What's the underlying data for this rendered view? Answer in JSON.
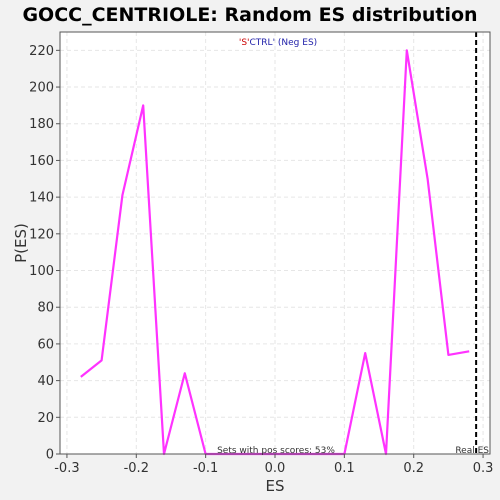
{
  "chart_data": {
    "type": "line",
    "title": "GOCC_CENTRIOLE: Random ES distribution",
    "xlabel": "ES",
    "ylabel": "P(ES)",
    "xlim": [
      -0.31,
      0.31
    ],
    "ylim": [
      0,
      230
    ],
    "xticks": [
      -0.3,
      -0.2,
      -0.1,
      0.0,
      0.1,
      0.2,
      0.3
    ],
    "xtick_labels": [
      "-0.3",
      "-0.2",
      "-0.1",
      "0.0",
      "0.1",
      "0.2",
      "0.3"
    ],
    "yticks": [
      0,
      20,
      40,
      60,
      80,
      100,
      120,
      140,
      160,
      180,
      200,
      220
    ],
    "ytick_labels": [
      "0",
      "20",
      "40",
      "60",
      "80",
      "100",
      "120",
      "140",
      "160",
      "180",
      "200",
      "220"
    ],
    "grid": true,
    "legend": {
      "position": "top-center",
      "quote_open": "'",
      "s_text": "S",
      "quote_close": "'",
      "ctrl_text": "CTRL' (Neg ES)"
    },
    "series": [
      {
        "color": "#ff33ff",
        "x": [
          -0.28,
          -0.25,
          -0.22,
          -0.19,
          -0.16,
          -0.13,
          -0.1,
          -0.07,
          -0.04,
          -0.01,
          0.02,
          0.05,
          0.08,
          0.1,
          0.13,
          0.16,
          0.19,
          0.22,
          0.25,
          0.28
        ],
        "y": [
          42,
          51,
          141,
          190,
          0,
          44,
          0,
          0,
          0,
          0,
          0,
          0,
          0,
          0,
          55,
          0,
          220,
          150,
          54,
          56
        ]
      }
    ],
    "real_es": {
      "value": 0.29,
      "label": "Real ES"
    },
    "annotation": "Sets with pos scores: 53%"
  }
}
